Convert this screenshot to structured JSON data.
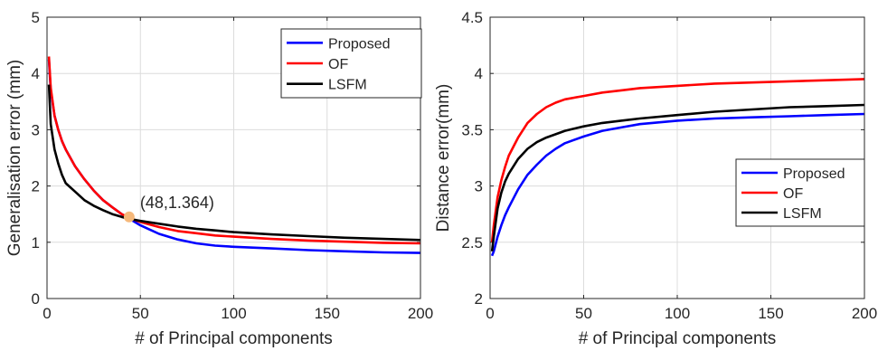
{
  "chart_data": [
    {
      "type": "line",
      "xlabel": "# of Principal components",
      "ylabel": "Generalisation error (mm)",
      "xlim": [
        0,
        200
      ],
      "ylim": [
        0,
        5
      ],
      "xticks": [
        "0",
        "50",
        "100",
        "150",
        "200"
      ],
      "yticks": [
        "0",
        "1",
        "2",
        "3",
        "4",
        "5"
      ],
      "grid": true,
      "legend_position": "top-right",
      "annotation": {
        "text": "(48,1.364)",
        "x": 44,
        "y": 1.45,
        "color": "#F5B87A"
      },
      "series": [
        {
          "name": "Proposed",
          "color": "#0000FF",
          "x": [
            1,
            2,
            4,
            6,
            8,
            10,
            15,
            20,
            25,
            30,
            35,
            40,
            45,
            50,
            60,
            70,
            80,
            90,
            100,
            120,
            140,
            160,
            180,
            200
          ],
          "y": [
            4.25,
            3.7,
            3.25,
            3.0,
            2.8,
            2.65,
            2.35,
            2.12,
            1.92,
            1.75,
            1.62,
            1.5,
            1.4,
            1.3,
            1.15,
            1.05,
            0.98,
            0.94,
            0.92,
            0.89,
            0.86,
            0.84,
            0.82,
            0.81
          ]
        },
        {
          "name": "OF",
          "color": "#FF0000",
          "x": [
            1,
            2,
            4,
            6,
            8,
            10,
            15,
            20,
            25,
            30,
            35,
            40,
            45,
            50,
            60,
            70,
            80,
            90,
            100,
            120,
            140,
            160,
            180,
            200
          ],
          "y": [
            4.3,
            3.75,
            3.25,
            3.0,
            2.8,
            2.65,
            2.35,
            2.12,
            1.92,
            1.75,
            1.62,
            1.5,
            1.42,
            1.36,
            1.27,
            1.2,
            1.16,
            1.12,
            1.1,
            1.06,
            1.03,
            1.01,
            0.99,
            0.98
          ]
        },
        {
          "name": "LSFM",
          "color": "#000000",
          "x": [
            1,
            2,
            4,
            6,
            8,
            10,
            15,
            20,
            25,
            30,
            35,
            40,
            45,
            50,
            60,
            70,
            80,
            90,
            100,
            120,
            140,
            160,
            180,
            200
          ],
          "y": [
            3.8,
            3.1,
            2.65,
            2.4,
            2.2,
            2.05,
            1.9,
            1.75,
            1.65,
            1.57,
            1.5,
            1.45,
            1.41,
            1.38,
            1.33,
            1.28,
            1.24,
            1.21,
            1.18,
            1.14,
            1.11,
            1.08,
            1.06,
            1.04
          ]
        }
      ]
    },
    {
      "type": "line",
      "xlabel": "# of Principal components",
      "ylabel": "Distance error(mm)",
      "xlim": [
        0,
        200
      ],
      "ylim": [
        2,
        4.5
      ],
      "xticks": [
        "0",
        "50",
        "100",
        "150",
        "200"
      ],
      "yticks": [
        "2",
        "2.5",
        "3",
        "3.5",
        "4",
        "4.5"
      ],
      "grid": true,
      "legend_position": "middle-right",
      "series": [
        {
          "name": "Proposed",
          "color": "#0000FF",
          "x": [
            1,
            2,
            4,
            6,
            8,
            10,
            15,
            20,
            25,
            30,
            35,
            40,
            50,
            60,
            70,
            80,
            100,
            120,
            140,
            160,
            180,
            200
          ],
          "y": [
            2.38,
            2.42,
            2.55,
            2.65,
            2.74,
            2.81,
            2.97,
            3.1,
            3.19,
            3.27,
            3.33,
            3.38,
            3.44,
            3.49,
            3.52,
            3.55,
            3.58,
            3.6,
            3.61,
            3.62,
            3.63,
            3.64
          ]
        },
        {
          "name": "OF",
          "color": "#FF0000",
          "x": [
            1,
            2,
            4,
            6,
            8,
            10,
            15,
            20,
            25,
            30,
            35,
            40,
            50,
            60,
            70,
            80,
            100,
            120,
            140,
            160,
            180,
            200
          ],
          "y": [
            2.5,
            2.65,
            2.9,
            3.05,
            3.17,
            3.27,
            3.43,
            3.56,
            3.64,
            3.7,
            3.74,
            3.77,
            3.8,
            3.83,
            3.85,
            3.87,
            3.89,
            3.91,
            3.92,
            3.93,
            3.94,
            3.95
          ]
        },
        {
          "name": "LSFM",
          "color": "#000000",
          "x": [
            1,
            2,
            4,
            6,
            8,
            10,
            15,
            20,
            25,
            30,
            35,
            40,
            50,
            60,
            70,
            80,
            100,
            120,
            140,
            160,
            180,
            200
          ],
          "y": [
            2.42,
            2.55,
            2.8,
            2.94,
            3.04,
            3.11,
            3.24,
            3.33,
            3.39,
            3.43,
            3.46,
            3.49,
            3.53,
            3.56,
            3.58,
            3.6,
            3.63,
            3.66,
            3.68,
            3.7,
            3.71,
            3.72
          ]
        }
      ]
    }
  ]
}
